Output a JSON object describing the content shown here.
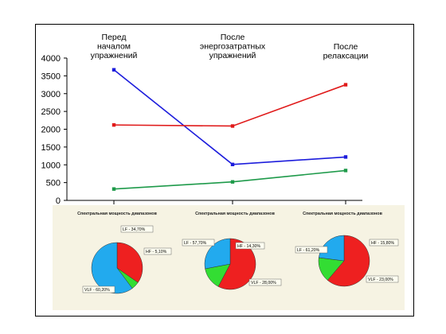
{
  "chart_data": [
    {
      "type": "line",
      "title": "",
      "xlabel": "",
      "ylabel": "",
      "categories": [
        "Перед\nначалом\nупражнений",
        "После\nэнергозатратных\nупражнений",
        "После\nрелаксации"
      ],
      "ylim": [
        0,
        4000
      ],
      "yticks": [
        0,
        500,
        1000,
        1500,
        2000,
        2500,
        3000,
        3500,
        4000
      ],
      "grid": false,
      "series": [
        {
          "color": "#1c1cdc",
          "values": [
            3670,
            1010,
            1220
          ]
        },
        {
          "color": "#e01a1a",
          "values": [
            2120,
            2090,
            3250
          ]
        },
        {
          "color": "#1e9a4a",
          "values": [
            320,
            520,
            840
          ]
        }
      ]
    },
    {
      "type": "pie",
      "title": "Спектральная мощность диапазонов",
      "slices": [
        {
          "label": "LF - 34,70%",
          "value": 34.7,
          "color": "#ee2020"
        },
        {
          "label": "HF - 5,10%",
          "value": 5.1,
          "color": "#33dd33"
        },
        {
          "label": "VLF - 60,20%",
          "value": 60.2,
          "color": "#22aaee"
        }
      ]
    },
    {
      "type": "pie",
      "title": "Спектральная мощность диапазонов",
      "slices": [
        {
          "label": "LF - 57,70%",
          "value": 57.7,
          "color": "#ee2020"
        },
        {
          "label": "HF - 14,30%",
          "value": 14.3,
          "color": "#33dd33"
        },
        {
          "label": "VLF - 28,00%",
          "value": 28.0,
          "color": "#22aaee"
        }
      ]
    },
    {
      "type": "pie",
      "title": "Спектральная мощность диапазонов",
      "slices": [
        {
          "label": "LF - 61,20%",
          "value": 61.2,
          "color": "#ee2020"
        },
        {
          "label": "HF - 15,80%",
          "value": 15.8,
          "color": "#33dd33"
        },
        {
          "label": "VLF - 23,00%",
          "value": 23.0,
          "color": "#22aaee"
        }
      ]
    }
  ]
}
